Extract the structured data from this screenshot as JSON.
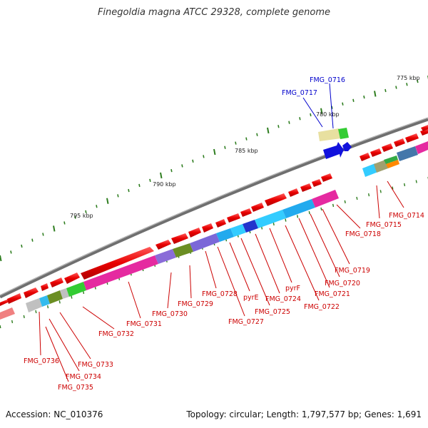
{
  "title": "Finegoldia magna ATCC 29328, complete genome",
  "footer": {
    "accession": "Accession: NC_010376",
    "summary": "Topology: circular; Length: 1,797,577 bp; Genes: 1,691"
  },
  "ruler": {
    "labels": [
      "775 kbp",
      "780 kbp",
      "785 kbp",
      "790 kbp",
      "795 kbp"
    ]
  },
  "colors": {
    "forward_gene": "#ee0000",
    "backbone": "#777777",
    "tick": "#2e7d1f",
    "label_red": "#cc0000",
    "label_blue": "#0000cc"
  },
  "genes": [
    {
      "label": "FMG_0714",
      "color": "red"
    },
    {
      "label": "FMG_0715",
      "color": "red"
    },
    {
      "label": "FMG_0716",
      "color": "blue"
    },
    {
      "label": "FMG_0717",
      "color": "blue"
    },
    {
      "label": "FMG_0718",
      "color": "red"
    },
    {
      "label": "FMG_0719",
      "color": "red"
    },
    {
      "label": "FMG_0720",
      "color": "red"
    },
    {
      "label": "FMG_0721",
      "color": "red"
    },
    {
      "label": "FMG_0722",
      "color": "red"
    },
    {
      "label": "pyrF",
      "color": "red"
    },
    {
      "label": "FMG_0724",
      "color": "red"
    },
    {
      "label": "FMG_0725",
      "color": "red"
    },
    {
      "label": "pyrE",
      "color": "red"
    },
    {
      "label": "FMG_0727",
      "color": "red"
    },
    {
      "label": "FMG_0728",
      "color": "red"
    },
    {
      "label": "FMG_0729",
      "color": "red"
    },
    {
      "label": "FMG_0730",
      "color": "red"
    },
    {
      "label": "FMG_0731",
      "color": "red"
    },
    {
      "label": "FMG_0732",
      "color": "red"
    },
    {
      "label": "FMG_0733",
      "color": "red"
    },
    {
      "label": "FMG_0734",
      "color": "red"
    },
    {
      "label": "FMG_0735",
      "color": "red"
    },
    {
      "label": "FMG_0736",
      "color": "red"
    }
  ]
}
